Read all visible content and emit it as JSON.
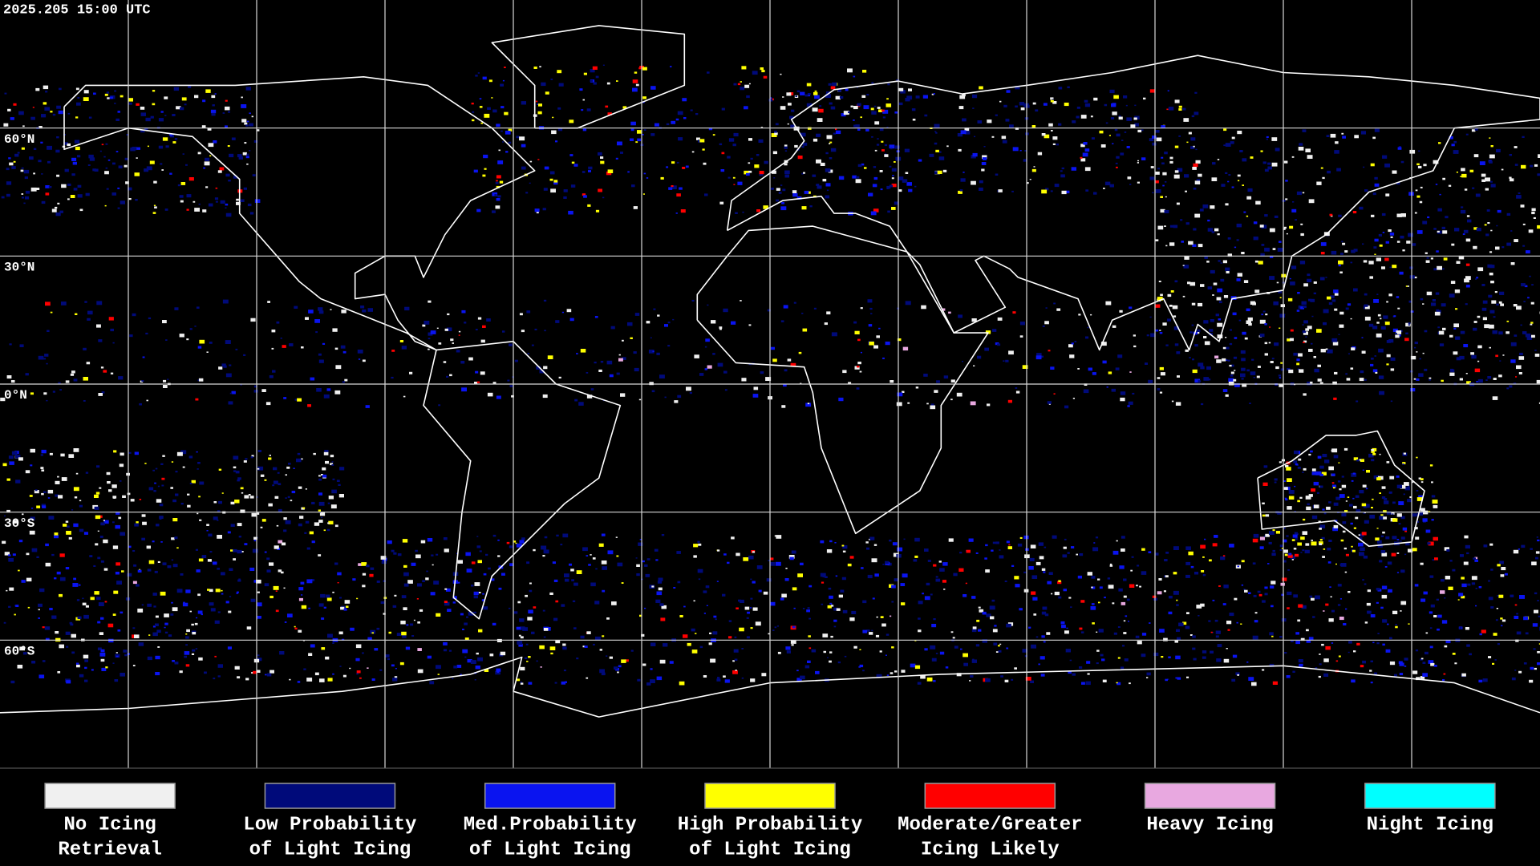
{
  "header": {
    "timestamp": "2025.205 15:00 UTC"
  },
  "map": {
    "latitude_labels": [
      "60°N",
      "30°N",
      "0°N",
      "30°S",
      "60°S"
    ]
  },
  "legend": [
    {
      "lines": [
        "No Icing",
        "Retrieval"
      ],
      "color": "#f0f0f0"
    },
    {
      "lines": [
        "Low Probability",
        "of Light Icing"
      ],
      "color": "#000a7a"
    },
    {
      "lines": [
        "Med.Probability",
        "of Light Icing"
      ],
      "color": "#0a14f0"
    },
    {
      "lines": [
        "High Probability",
        "of Light Icing"
      ],
      "color": "#ffff00"
    },
    {
      "lines": [
        "Moderate/Greater",
        "Icing Likely"
      ],
      "color": "#ff0000"
    },
    {
      "lines": [
        "Heavy Icing"
      ],
      "color": "#e8a8e0"
    },
    {
      "lines": [
        "Night Icing"
      ],
      "color": "#00ffff"
    }
  ]
}
